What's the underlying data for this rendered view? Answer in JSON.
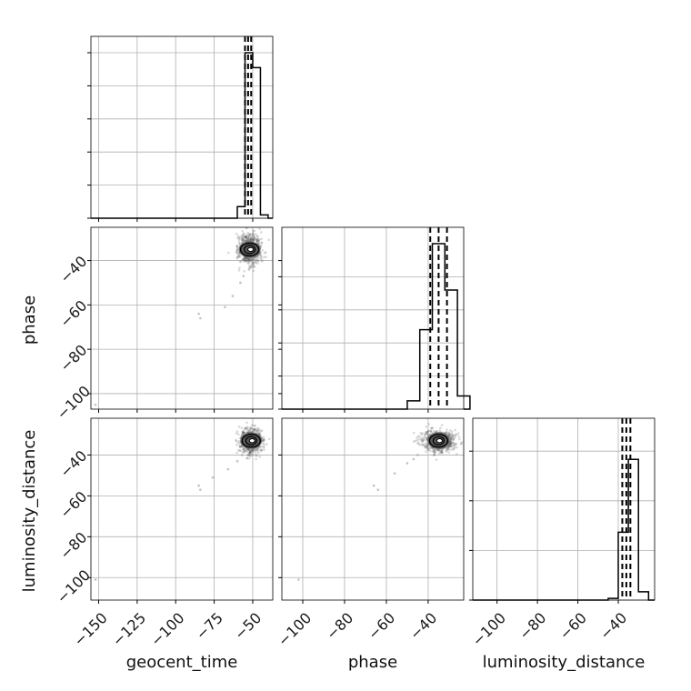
{
  "chart_data": {
    "type": "corner",
    "parameters": [
      "geocent_time",
      "phase",
      "luminosity_distance"
    ],
    "axis_labels": {
      "x": [
        "geocent_time",
        "phase",
        "luminosity_distance"
      ],
      "y": [
        "",
        "phase",
        "luminosity_distance"
      ]
    },
    "axes": [
      {
        "param": "geocent_time",
        "xlim": [
          -155,
          -37
        ],
        "ticks": [
          -150,
          -125,
          -100,
          -75,
          -50
        ],
        "tick_labels": [
          "−150",
          "−125",
          "−100",
          "−75",
          "−50"
        ]
      },
      {
        "param": "phase",
        "xlim": [
          -110,
          -23
        ],
        "ticks": [
          -100,
          -80,
          -60,
          -40
        ],
        "tick_labels": [
          "−100",
          "−80",
          "−60",
          "−40"
        ]
      },
      {
        "param": "luminosity_distance",
        "xlim": [
          -112,
          -22
        ],
        "ticks": [
          -100,
          -80,
          -60,
          -40
        ],
        "tick_labels": [
          "−100",
          "−80",
          "−60",
          "−40"
        ]
      }
    ],
    "y_axes": [
      {
        "param": "phase",
        "ylim": [
          -107,
          -25
        ],
        "ticks": [
          -100,
          -80,
          -60,
          -40
        ],
        "tick_labels": [
          "−100",
          "−80",
          "−60",
          "−40"
        ]
      },
      {
        "param": "luminosity_distance",
        "ylim": [
          -111,
          -22
        ],
        "ticks": [
          -100,
          -80,
          -60,
          -40
        ],
        "tick_labels": [
          "−100",
          "−80",
          "−60",
          "−40"
        ]
      }
    ],
    "histograms": [
      {
        "param": "geocent_time",
        "bin_edges": [
          -60,
          -55,
          -50,
          -45,
          -40
        ],
        "counts": [
          0.07,
          1.0,
          0.91,
          0.02
        ],
        "quantiles": [
          -55,
          -53,
          -51
        ]
      },
      {
        "param": "phase",
        "bin_edges": [
          -50,
          -44,
          -38,
          -32,
          -26,
          -20
        ],
        "counts": [
          0.05,
          0.48,
          1.0,
          0.72,
          0.08
        ],
        "quantiles": [
          -39,
          -35,
          -31
        ]
      },
      {
        "param": "luminosity_distance",
        "bin_edges": [
          -45,
          -40,
          -35,
          -30,
          -25
        ],
        "counts": [
          0.01,
          0.41,
          0.85,
          0.05
        ],
        "quantiles": [
          -38,
          -36,
          -34
        ]
      }
    ],
    "scatter_panels": [
      {
        "x": "geocent_time",
        "y": "phase",
        "center": [
          -52,
          -35
        ],
        "spread": [
          3.5,
          3.5
        ],
        "outliers": [
          [
            -85,
            -64
          ],
          [
            -84,
            -66
          ],
          [
            -68,
            -61
          ],
          [
            -63,
            -56
          ],
          [
            -58,
            -50
          ],
          [
            -56,
            -47
          ],
          [
            -152,
            -105
          ]
        ]
      },
      {
        "x": "geocent_time",
        "y": "luminosity_distance",
        "center": [
          -51,
          -33
        ],
        "spread": [
          3.5,
          3.0
        ],
        "outliers": [
          [
            -85,
            -55
          ],
          [
            -84,
            -57
          ],
          [
            -76,
            -51
          ],
          [
            -66,
            -47
          ],
          [
            -60,
            -43
          ],
          [
            -57,
            -40
          ],
          [
            -152,
            -101
          ]
        ]
      },
      {
        "x": "phase",
        "y": "luminosity_distance",
        "center": [
          -35,
          -33
        ],
        "spread": [
          4.0,
          2.6
        ],
        "outliers": [
          [
            -66,
            -55
          ],
          [
            -64,
            -57
          ],
          [
            -56,
            -49
          ],
          [
            -50,
            -44
          ],
          [
            -47,
            -42
          ],
          [
            -45,
            -40
          ],
          [
            -102,
            -101
          ]
        ]
      }
    ],
    "grid": true,
    "colors": {
      "hist": "#000000",
      "points": "#555555",
      "grid": "#b0b0b0"
    }
  }
}
